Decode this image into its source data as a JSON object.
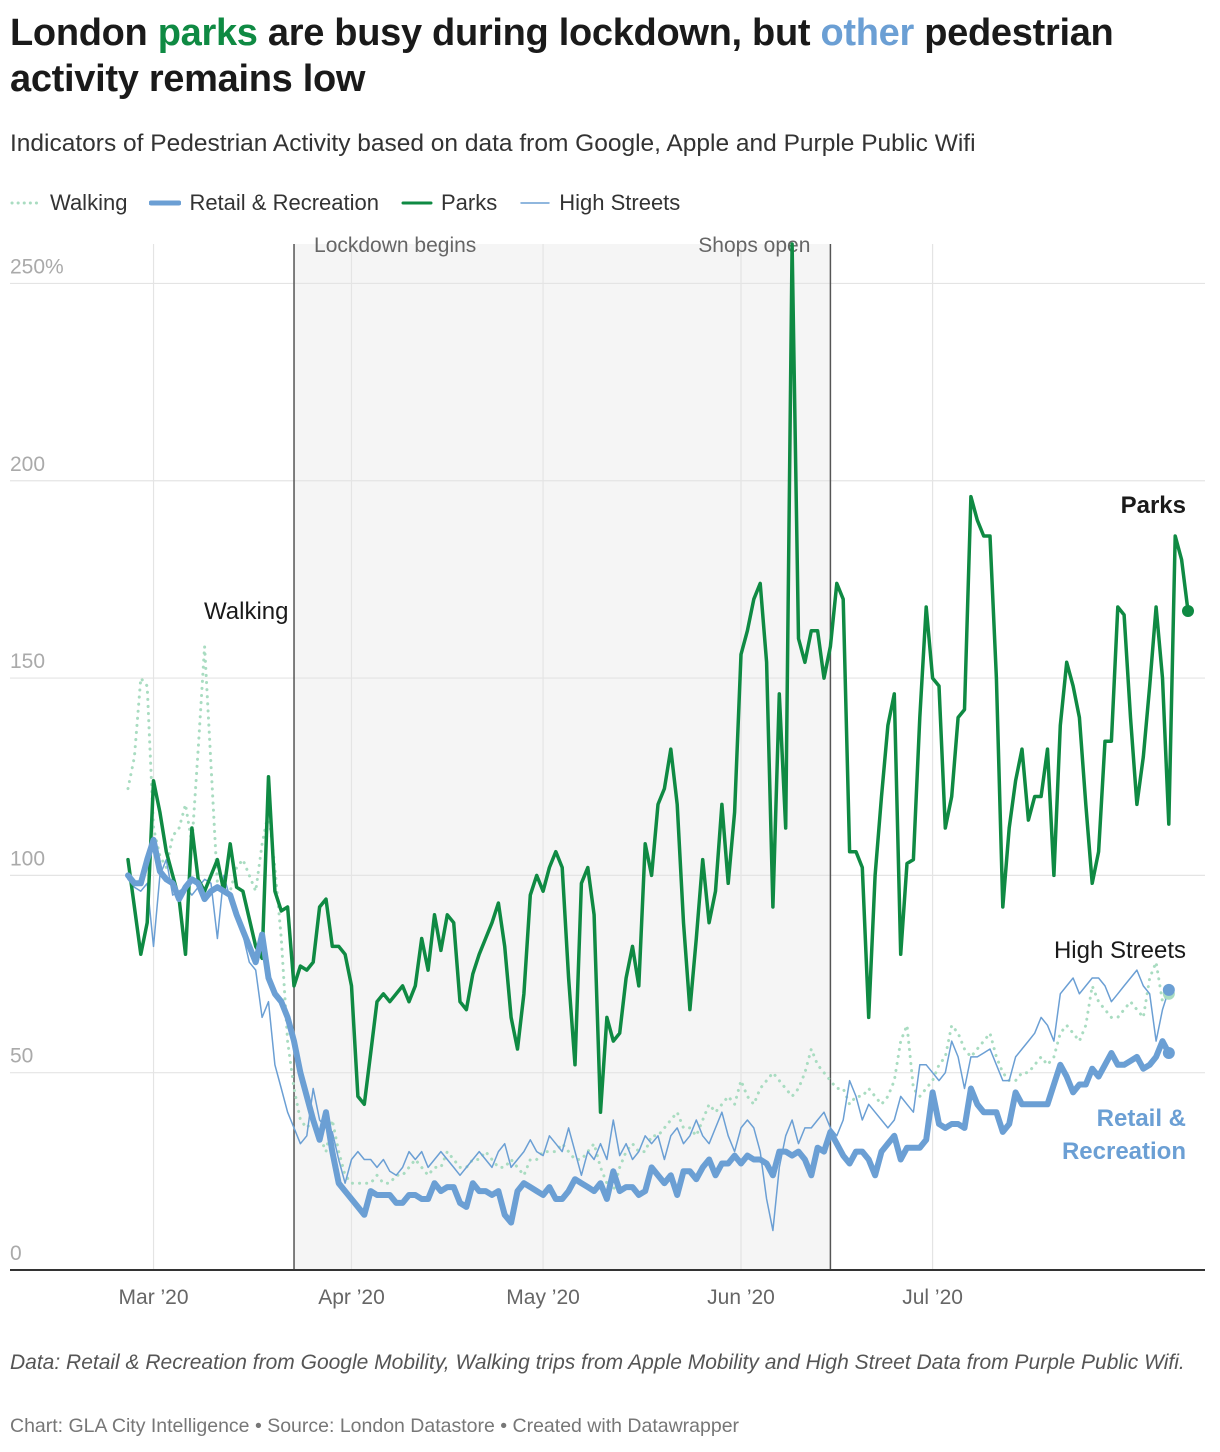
{
  "header": {
    "title_parts": [
      "London ",
      "parks",
      " are busy during lockdown, but ",
      "other",
      " pedestrian activity remains low"
    ],
    "subtitle": "Indicators of Pedestrian Activity based on data from Google, Apple and Purple Public Wifi"
  },
  "legend": [
    {
      "label": "Walking",
      "color": "#a9dcc1",
      "style": "dotted"
    },
    {
      "label": "Retail & Recreation",
      "color": "#6b9fd4",
      "style": "thick"
    },
    {
      "label": "Parks",
      "color": "#0f8a43",
      "style": "solid"
    },
    {
      "label": "High Streets",
      "color": "#6b9fd4",
      "style": "thin"
    }
  ],
  "footer": {
    "notes": "Data: Retail & Recreation from Google Mobility, Walking trips from Apple Mobility and High Street Data from Purple Public Wifi.",
    "credit": "Chart: GLA City Intelligence • Source: London Datastore • Created with Datawrapper"
  },
  "colors": {
    "parks": "#0f8a43",
    "retail": "#6b9fd4",
    "high_streets": "#6b9fd4",
    "walking": "#a9dcc1",
    "shade": "#f5f5f5",
    "grid": "#e4e4e4"
  },
  "chart_data": {
    "type": "line",
    "x_axis": {
      "ticks": [
        {
          "date": "2020-03-01",
          "label": "Mar ’20"
        },
        {
          "date": "2020-04-01",
          "label": "Apr ’20"
        },
        {
          "date": "2020-05-01",
          "label": "May ’20"
        },
        {
          "date": "2020-06-01",
          "label": "Jun ’20"
        },
        {
          "date": "2020-07-01",
          "label": "Jul ’20"
        }
      ],
      "range": [
        "2020-02-22",
        "2020-07-28"
      ]
    },
    "y_axis": {
      "ticks": [
        {
          "value": 0,
          "label": "0"
        },
        {
          "value": 50,
          "label": "50"
        },
        {
          "value": 100,
          "label": "100"
        },
        {
          "value": 150,
          "label": "150"
        },
        {
          "value": 200,
          "label": "200"
        },
        {
          "value": 250,
          "label": "250%"
        }
      ],
      "ylim": [
        0,
        260
      ]
    },
    "grid": true,
    "shaded_range": {
      "start": "2020-03-23",
      "end": "2020-06-15"
    },
    "annotations": [
      {
        "label": "Lockdown begins",
        "date": "2020-03-23"
      },
      {
        "label": "Shops open",
        "date": "2020-06-15"
      }
    ],
    "line_labels": [
      {
        "series": "Parks",
        "text": "Parks"
      },
      {
        "series": "Walking",
        "text": "Walking"
      },
      {
        "series": "High Streets",
        "text": "High Streets"
      },
      {
        "series": "Retail & Recreation",
        "text": "Retail & Recreation"
      }
    ],
    "series": [
      {
        "name": "Parks",
        "start": "2020-02-26",
        "values": [
          104,
          92,
          80,
          88,
          124,
          116,
          106,
          100,
          94,
          80,
          112,
          99,
          96,
          100,
          104,
          96,
          108,
          97,
          96,
          89,
          82,
          79,
          125,
          96,
          91,
          92,
          72,
          77,
          76,
          78,
          92,
          94,
          82,
          82,
          80,
          72,
          44,
          42,
          55,
          68,
          70,
          68,
          70,
          72,
          68,
          72,
          84,
          76,
          90,
          81,
          90,
          88,
          68,
          66,
          75,
          80,
          84,
          88,
          93,
          82,
          64,
          56,
          70,
          95,
          100,
          96,
          102,
          106,
          102,
          74,
          52,
          98,
          102,
          90,
          40,
          64,
          58,
          60,
          74,
          82,
          72,
          108,
          100,
          118,
          122,
          132,
          118,
          88,
          66,
          84,
          104,
          88,
          96,
          118,
          98,
          116,
          156,
          162,
          170,
          174,
          154,
          92,
          146,
          112,
          260,
          160,
          154,
          162,
          162,
          150,
          158,
          174,
          170,
          106,
          106,
          102,
          64,
          100,
          120,
          138,
          146,
          80,
          103,
          104,
          140,
          168,
          150,
          148,
          112,
          120,
          140,
          142,
          196,
          190,
          186,
          186,
          150,
          92,
          112,
          124,
          132,
          114,
          120,
          120,
          132,
          100,
          138,
          154,
          148,
          140,
          118,
          98,
          106,
          134,
          134,
          168,
          166,
          140,
          118,
          130,
          148,
          168,
          150,
          113,
          186,
          180,
          167
        ],
        "end_dot": true
      },
      {
        "name": "Retail & Recreation",
        "start": "2020-02-26",
        "values": [
          100,
          98,
          98,
          104,
          109,
          101,
          99,
          98,
          94,
          97,
          99,
          98,
          94,
          96,
          97,
          96,
          95,
          90,
          86,
          82,
          78,
          85,
          74,
          70,
          68,
          64,
          58,
          50,
          44,
          38,
          33,
          40,
          30,
          22,
          20,
          18,
          16,
          14,
          20,
          19,
          19,
          19,
          17,
          17,
          19,
          19,
          18,
          18,
          22,
          20,
          21,
          21,
          17,
          16,
          22,
          20,
          20,
          19,
          20,
          14,
          12,
          20,
          22,
          21,
          20,
          19,
          21,
          18,
          18,
          20,
          23,
          22,
          21,
          20,
          22,
          18,
          25,
          20,
          21,
          21,
          19,
          20,
          26,
          24,
          22,
          24,
          19,
          25,
          25,
          23,
          26,
          28,
          24,
          27,
          27,
          29,
          27,
          29,
          28,
          28,
          27,
          24,
          30,
          30,
          29,
          30,
          28,
          24,
          31,
          30,
          35,
          32,
          29,
          27,
          30,
          30,
          28,
          24,
          30,
          32,
          34,
          28,
          31,
          31,
          31,
          33,
          45,
          37,
          36,
          37,
          37,
          36,
          46,
          42,
          40,
          40,
          40,
          35,
          37,
          45,
          42,
          42,
          42,
          42,
          42,
          47,
          52,
          49,
          45,
          47,
          47,
          51,
          49,
          52,
          55,
          52,
          52,
          53,
          54,
          51,
          52,
          54,
          58,
          55
        ],
        "end_dot": true
      },
      {
        "name": "High Streets",
        "start": "2020-02-26",
        "values": [
          99,
          97,
          96,
          98,
          82,
          100,
          104,
          95,
          96,
          97,
          95,
          97,
          99,
          98,
          84,
          100,
          94,
          90,
          85,
          78,
          76,
          64,
          68,
          52,
          46,
          40,
          36,
          32,
          34,
          46,
          38,
          36,
          35,
          28,
          22,
          28,
          30,
          28,
          28,
          26,
          28,
          25,
          24,
          26,
          30,
          28,
          30,
          26,
          28,
          30,
          28,
          26,
          24,
          26,
          28,
          30,
          28,
          26,
          30,
          32,
          26,
          28,
          30,
          33,
          30,
          29,
          34,
          32,
          30,
          36,
          30,
          24,
          30,
          28,
          32,
          28,
          38,
          29,
          32,
          28,
          30,
          34,
          32,
          34,
          28,
          34,
          36,
          32,
          34,
          38,
          34,
          32,
          36,
          40,
          34,
          30,
          36,
          38,
          36,
          30,
          18,
          10,
          26,
          34,
          38,
          32,
          36,
          36,
          38,
          40,
          36,
          34,
          38,
          48,
          44,
          38,
          42,
          40,
          38,
          36,
          38,
          44,
          42,
          40,
          52,
          52,
          50,
          48,
          50,
          58,
          54,
          46,
          54,
          54,
          55,
          56,
          52,
          48,
          48,
          54,
          56,
          58,
          60,
          64,
          62,
          58,
          70,
          72,
          74,
          70,
          72,
          74,
          74,
          72,
          68,
          70,
          72,
          74,
          76,
          72,
          70,
          58,
          66,
          71
        ],
        "end_dot": true
      },
      {
        "name": "Walking",
        "start": "2020-02-26",
        "values": [
          122,
          130,
          150,
          148,
          112,
          105,
          102,
          110,
          112,
          118,
          108,
          132,
          158,
          128,
          98,
          96,
          96,
          102,
          104,
          100,
          96,
          108,
          116,
          102,
          84,
          58,
          46,
          38,
          36,
          38,
          34,
          30,
          38,
          30,
          24,
          22,
          22,
          22,
          22,
          24,
          22,
          22,
          24,
          24,
          26,
          28,
          26,
          24,
          26,
          26,
          30,
          28,
          26,
          26,
          28,
          28,
          30,
          28,
          26,
          26,
          28,
          26,
          24,
          28,
          28,
          30,
          30,
          30,
          32,
          30,
          28,
          28,
          30,
          32,
          26,
          22,
          20,
          26,
          30,
          32,
          30,
          30,
          34,
          34,
          36,
          38,
          40,
          36,
          36,
          34,
          38,
          42,
          40,
          42,
          44,
          42,
          48,
          44,
          42,
          46,
          48,
          50,
          48,
          46,
          44,
          46,
          50,
          56,
          52,
          50,
          48,
          46,
          46,
          42,
          44,
          44,
          46,
          44,
          42,
          44,
          48,
          58,
          62,
          46,
          44,
          46,
          48,
          52,
          54,
          62,
          60,
          56,
          54,
          56,
          58,
          60,
          54,
          50,
          48,
          48,
          50,
          50,
          52,
          54,
          52,
          54,
          60,
          62,
          60,
          58,
          62,
          72,
          68,
          66,
          64,
          64,
          66,
          68,
          66,
          64,
          74,
          78,
          68,
          70
        ],
        "end_dot": true
      }
    ]
  }
}
